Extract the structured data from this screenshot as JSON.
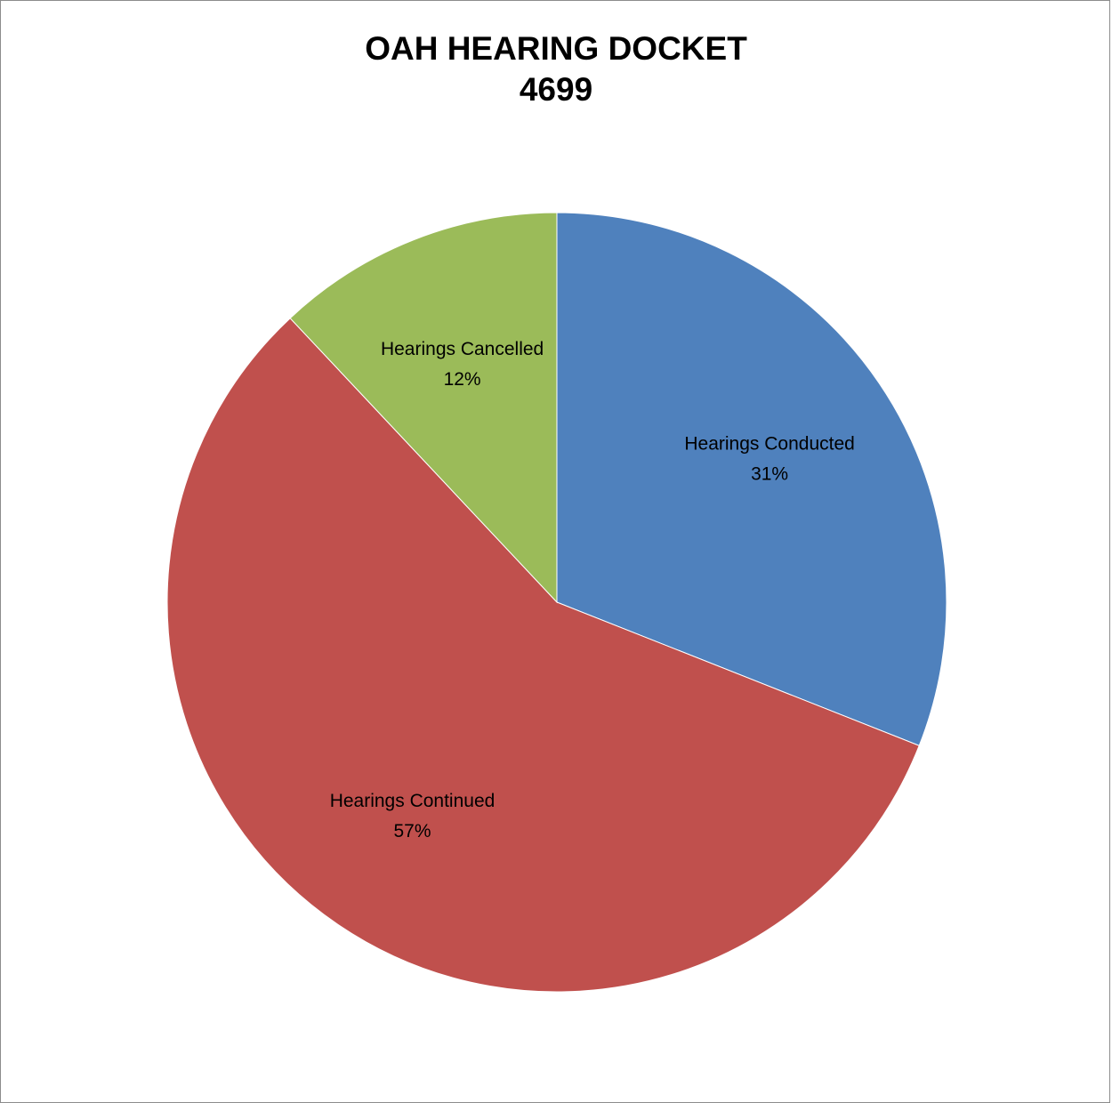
{
  "chart_data": {
    "type": "pie",
    "title": "OAH HEARING DOCKET",
    "subtitle": "4699",
    "slices": [
      {
        "name": "Hearings Conducted",
        "value": 31,
        "label": "31%",
        "color": "#4f81bd"
      },
      {
        "name": "Hearings Continued",
        "value": 57,
        "label": "57%",
        "color": "#c0504d"
      },
      {
        "name": "Hearings Cancelled",
        "value": 12,
        "label": "12%",
        "color": "#9bbb59"
      }
    ],
    "start_angle": "12 o'clock",
    "direction": "clockwise",
    "legend": "none",
    "data_labels": "inside"
  }
}
